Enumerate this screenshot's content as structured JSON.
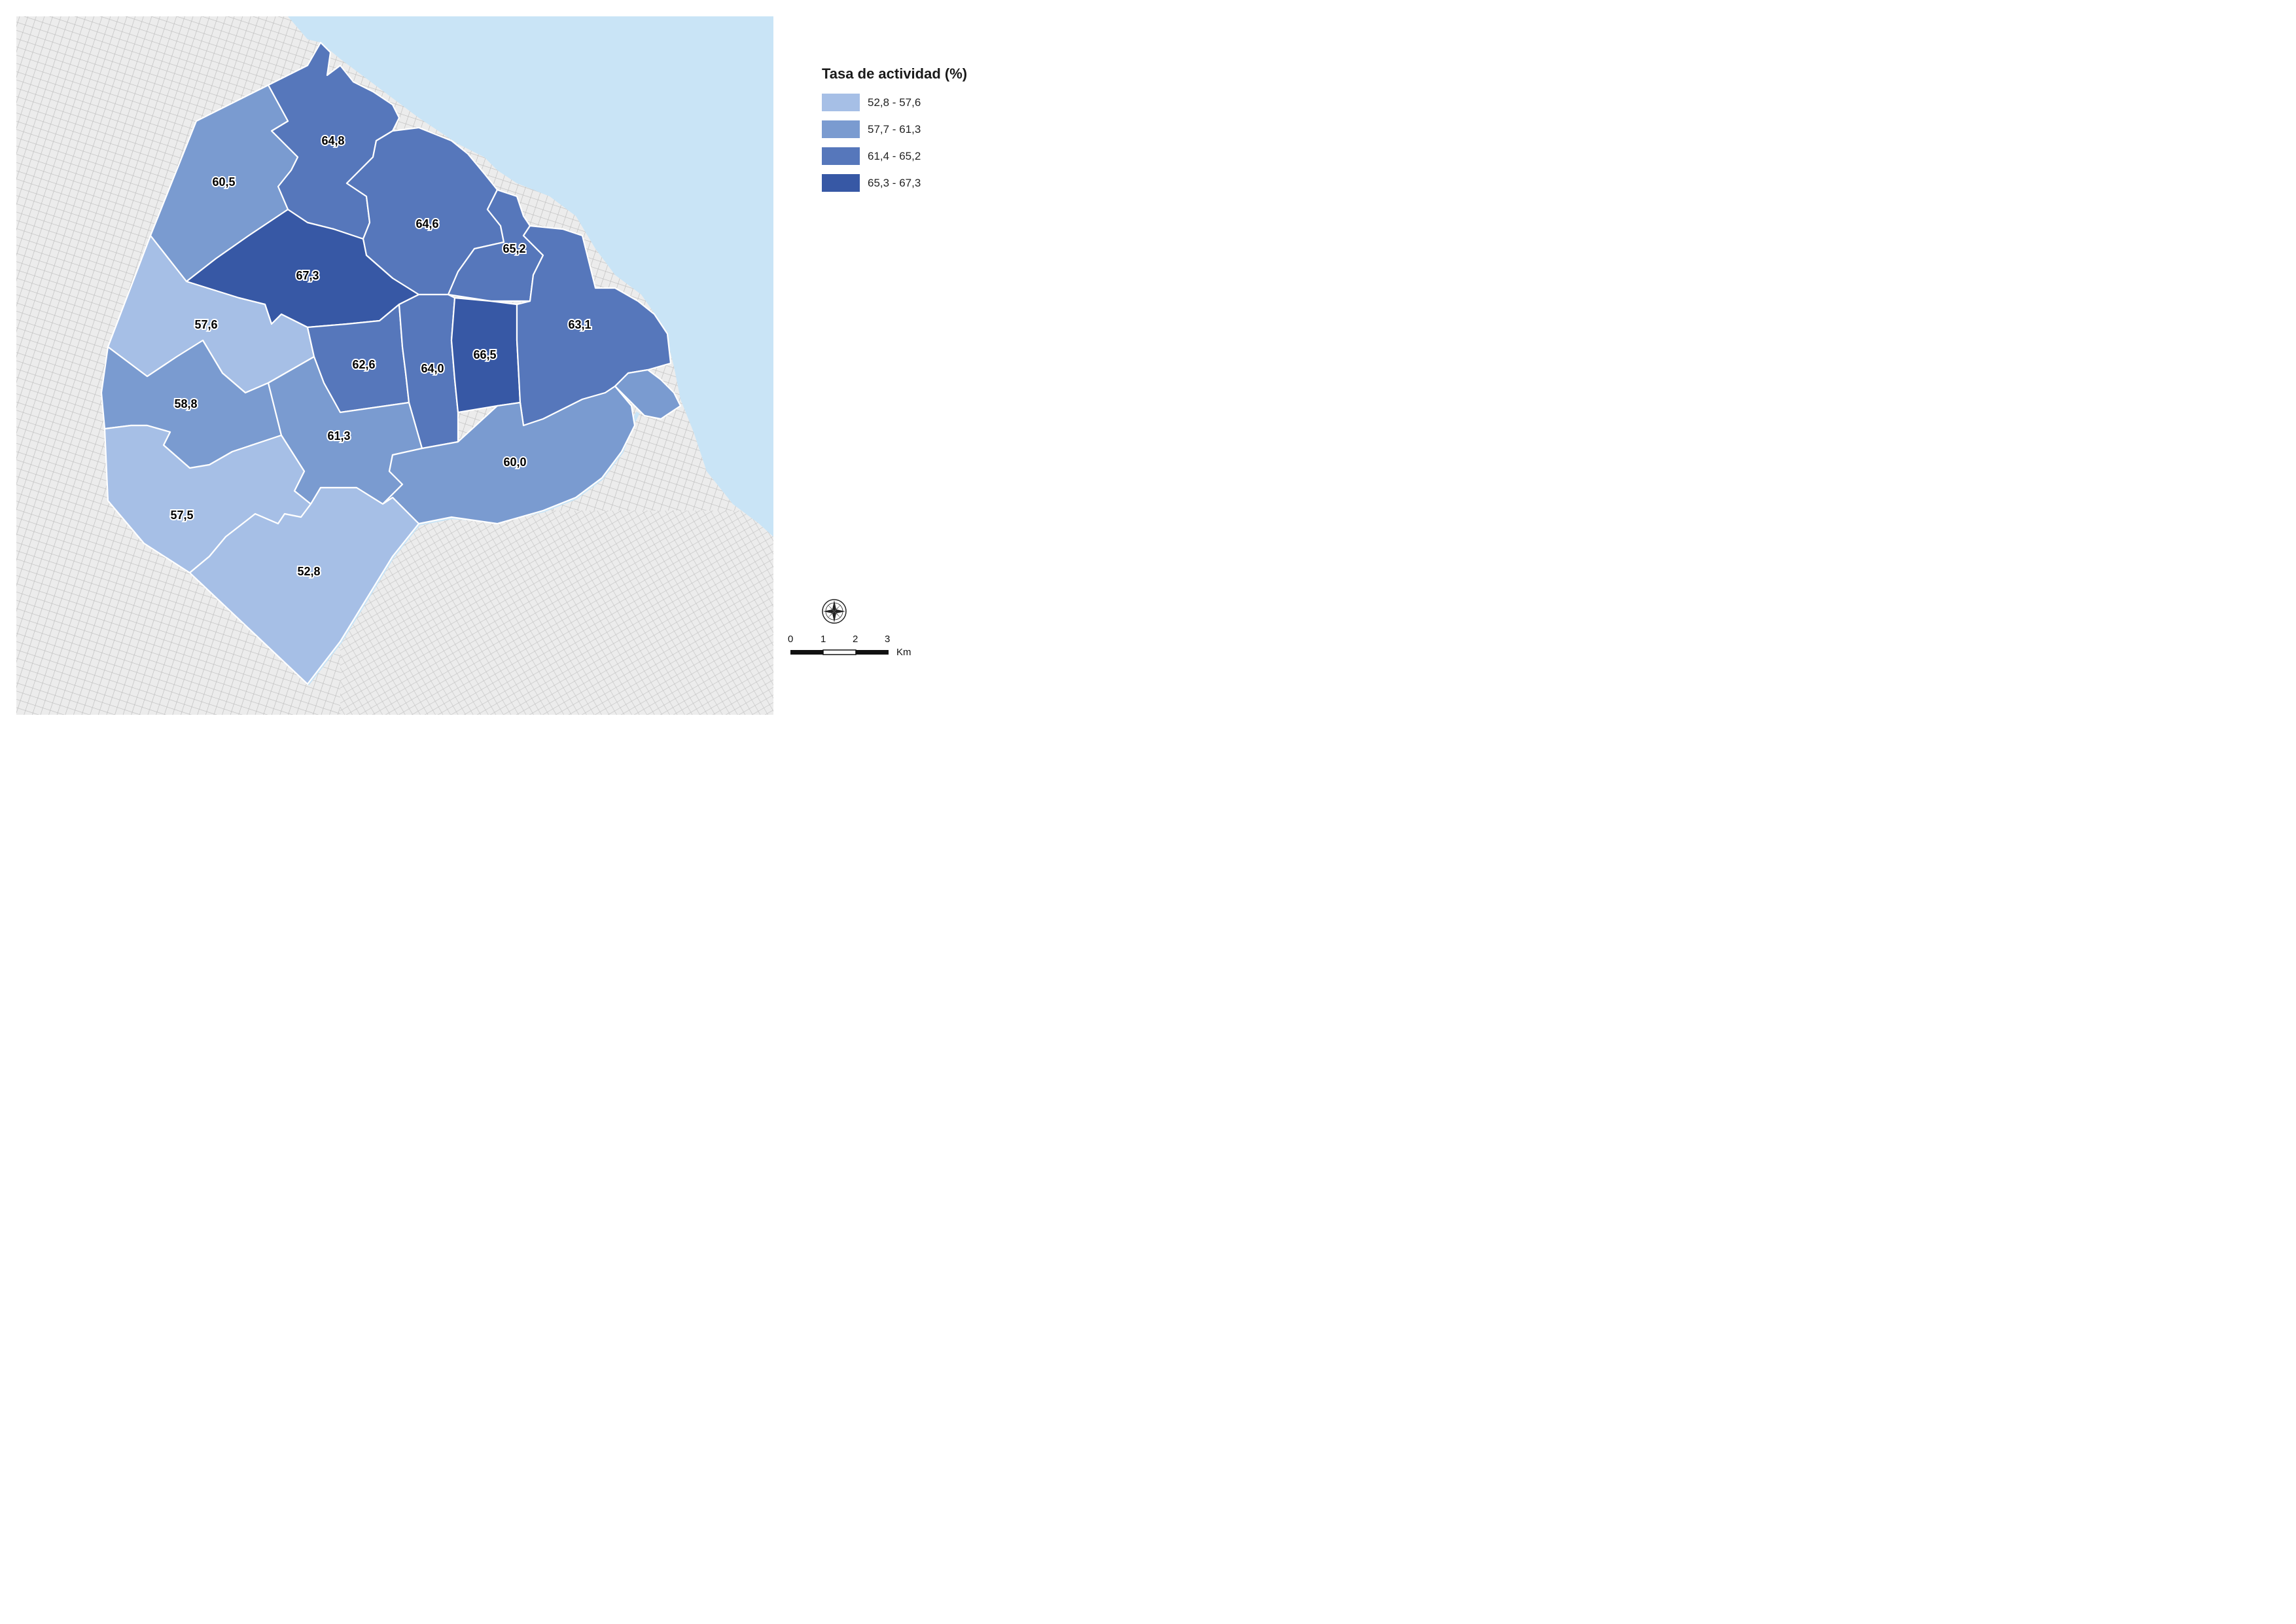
{
  "legend": {
    "title": "Tasa de actividad (%)",
    "classes": [
      {
        "label": "52,8 - 57,6",
        "color": "#a6bfe6"
      },
      {
        "label": "57,7 - 61,3",
        "color": "#7a9bd0"
      },
      {
        "label": "61,4 - 65,2",
        "color": "#5677bb"
      },
      {
        "label": "65,3 - 67,3",
        "color": "#3758a5"
      }
    ]
  },
  "regions": [
    {
      "value": "64,8",
      "class": 2
    },
    {
      "value": "60,5",
      "class": 1
    },
    {
      "value": "64,6",
      "class": 2
    },
    {
      "value": "65,2",
      "class": 2
    },
    {
      "value": "67,3",
      "class": 3
    },
    {
      "value": "57,6",
      "class": 0
    },
    {
      "value": "62,6",
      "class": 2
    },
    {
      "value": "64,0",
      "class": 2
    },
    {
      "value": "66,5",
      "class": 3
    },
    {
      "value": "63,1",
      "class": 2
    },
    {
      "value": "58,8",
      "class": 1
    },
    {
      "value": "61,3",
      "class": 1
    },
    {
      "value": "60,0",
      "class": 1
    },
    {
      "value": "57,5",
      "class": 0
    },
    {
      "value": "52,8",
      "class": 0
    }
  ],
  "scale": {
    "ticks": [
      "0",
      "1",
      "2",
      "3"
    ],
    "unit": "Km"
  },
  "colors": {
    "water": "#c9e4f6",
    "street_grid": "#c8c8c8",
    "boundary": "#ffffff"
  }
}
